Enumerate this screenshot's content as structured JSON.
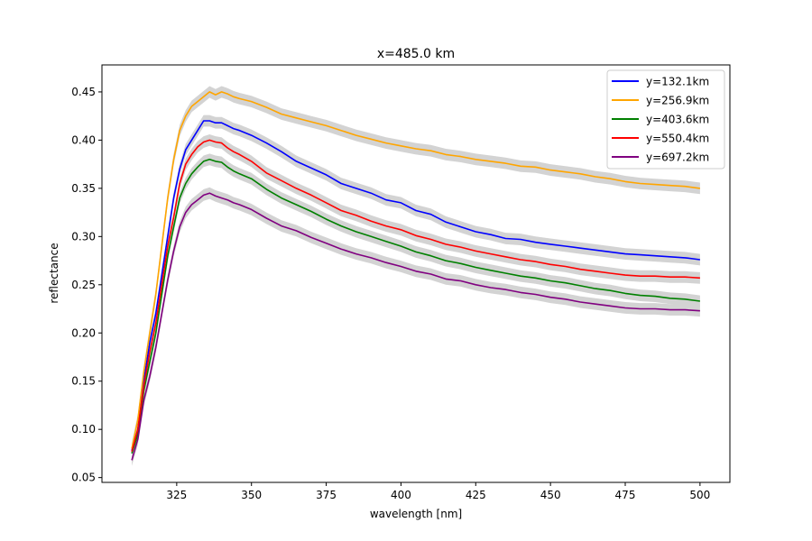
{
  "chart_data": {
    "type": "line",
    "title": "x=485.0 km",
    "xlabel": "wavelength [nm]",
    "ylabel": "reflectance",
    "xlim": [
      300,
      510
    ],
    "ylim": [
      0.045,
      0.478
    ],
    "xticks": [
      325,
      350,
      375,
      400,
      425,
      450,
      475,
      500
    ],
    "yticks": [
      0.05,
      0.1,
      0.15,
      0.2,
      0.25,
      0.3,
      0.35,
      0.4,
      0.45
    ],
    "ytick_labels": [
      "0.05",
      "0.10",
      "0.15",
      "0.20",
      "0.25",
      "0.30",
      "0.35",
      "0.40",
      "0.45"
    ],
    "grid": false,
    "legend_position": "top-right",
    "band_color": "#d3d3d3",
    "series": [
      {
        "name": "y=132.1km",
        "color": "#0000ff",
        "points": [
          [
            310,
            0.078
          ],
          [
            312,
            0.1
          ],
          [
            314,
            0.15
          ],
          [
            316,
            0.19
          ],
          [
            318,
            0.22
          ],
          [
            320,
            0.26
          ],
          [
            322,
            0.3
          ],
          [
            324,
            0.34
          ],
          [
            326,
            0.37
          ],
          [
            328,
            0.39
          ],
          [
            330,
            0.4
          ],
          [
            332,
            0.41
          ],
          [
            334,
            0.42
          ],
          [
            336,
            0.42
          ],
          [
            338,
            0.418
          ],
          [
            340,
            0.418
          ],
          [
            342,
            0.415
          ],
          [
            344,
            0.412
          ],
          [
            346,
            0.41
          ],
          [
            350,
            0.405
          ],
          [
            355,
            0.397
          ],
          [
            360,
            0.388
          ],
          [
            365,
            0.378
          ],
          [
            370,
            0.371
          ],
          [
            375,
            0.364
          ],
          [
            380,
            0.355
          ],
          [
            385,
            0.35
          ],
          [
            390,
            0.345
          ],
          [
            395,
            0.338
          ],
          [
            400,
            0.335
          ],
          [
            405,
            0.327
          ],
          [
            410,
            0.323
          ],
          [
            415,
            0.315
          ],
          [
            420,
            0.31
          ],
          [
            425,
            0.305
          ],
          [
            430,
            0.302
          ],
          [
            435,
            0.298
          ],
          [
            440,
            0.297
          ],
          [
            445,
            0.294
          ],
          [
            450,
            0.292
          ],
          [
            455,
            0.29
          ],
          [
            460,
            0.288
          ],
          [
            465,
            0.286
          ],
          [
            470,
            0.284
          ],
          [
            475,
            0.282
          ],
          [
            480,
            0.281
          ],
          [
            485,
            0.28
          ],
          [
            490,
            0.279
          ],
          [
            495,
            0.278
          ],
          [
            500,
            0.276
          ]
        ]
      },
      {
        "name": "y=256.9km",
        "color": "#ffa500",
        "points": [
          [
            310,
            0.08
          ],
          [
            312,
            0.11
          ],
          [
            314,
            0.16
          ],
          [
            316,
            0.2
          ],
          [
            318,
            0.24
          ],
          [
            320,
            0.29
          ],
          [
            322,
            0.34
          ],
          [
            324,
            0.38
          ],
          [
            326,
            0.41
          ],
          [
            328,
            0.425
          ],
          [
            330,
            0.435
          ],
          [
            332,
            0.44
          ],
          [
            334,
            0.445
          ],
          [
            336,
            0.45
          ],
          [
            338,
            0.447
          ],
          [
            340,
            0.45
          ],
          [
            342,
            0.448
          ],
          [
            344,
            0.445
          ],
          [
            346,
            0.443
          ],
          [
            350,
            0.44
          ],
          [
            355,
            0.434
          ],
          [
            360,
            0.427
          ],
          [
            365,
            0.423
          ],
          [
            370,
            0.419
          ],
          [
            375,
            0.415
          ],
          [
            380,
            0.41
          ],
          [
            385,
            0.405
          ],
          [
            390,
            0.401
          ],
          [
            395,
            0.397
          ],
          [
            400,
            0.394
          ],
          [
            405,
            0.391
          ],
          [
            410,
            0.389
          ],
          [
            415,
            0.385
          ],
          [
            420,
            0.383
          ],
          [
            425,
            0.38
          ],
          [
            430,
            0.378
          ],
          [
            435,
            0.376
          ],
          [
            440,
            0.373
          ],
          [
            445,
            0.372
          ],
          [
            450,
            0.369
          ],
          [
            455,
            0.367
          ],
          [
            460,
            0.365
          ],
          [
            465,
            0.362
          ],
          [
            470,
            0.36
          ],
          [
            475,
            0.357
          ],
          [
            480,
            0.355
          ],
          [
            485,
            0.354
          ],
          [
            490,
            0.353
          ],
          [
            495,
            0.352
          ],
          [
            500,
            0.35
          ]
        ]
      },
      {
        "name": "y=403.6km",
        "color": "#008000",
        "points": [
          [
            310,
            0.075
          ],
          [
            312,
            0.095
          ],
          [
            314,
            0.14
          ],
          [
            316,
            0.17
          ],
          [
            318,
            0.2
          ],
          [
            320,
            0.24
          ],
          [
            322,
            0.28
          ],
          [
            324,
            0.31
          ],
          [
            326,
            0.34
          ],
          [
            328,
            0.355
          ],
          [
            330,
            0.365
          ],
          [
            332,
            0.372
          ],
          [
            334,
            0.378
          ],
          [
            336,
            0.38
          ],
          [
            338,
            0.378
          ],
          [
            340,
            0.377
          ],
          [
            342,
            0.372
          ],
          [
            344,
            0.368
          ],
          [
            346,
            0.365
          ],
          [
            350,
            0.36
          ],
          [
            355,
            0.349
          ],
          [
            360,
            0.34
          ],
          [
            365,
            0.333
          ],
          [
            370,
            0.326
          ],
          [
            375,
            0.318
          ],
          [
            380,
            0.311
          ],
          [
            385,
            0.305
          ],
          [
            390,
            0.3
          ],
          [
            395,
            0.295
          ],
          [
            400,
            0.29
          ],
          [
            405,
            0.284
          ],
          [
            410,
            0.28
          ],
          [
            415,
            0.275
          ],
          [
            420,
            0.272
          ],
          [
            425,
            0.268
          ],
          [
            430,
            0.265
          ],
          [
            435,
            0.262
          ],
          [
            440,
            0.259
          ],
          [
            445,
            0.257
          ],
          [
            450,
            0.254
          ],
          [
            455,
            0.252
          ],
          [
            460,
            0.249
          ],
          [
            465,
            0.246
          ],
          [
            470,
            0.244
          ],
          [
            475,
            0.241
          ],
          [
            480,
            0.239
          ],
          [
            485,
            0.238
          ],
          [
            490,
            0.236
          ],
          [
            495,
            0.235
          ],
          [
            500,
            0.233
          ]
        ]
      },
      {
        "name": "y=550.4km",
        "color": "#ff0000",
        "points": [
          [
            310,
            0.077
          ],
          [
            312,
            0.1
          ],
          [
            314,
            0.145
          ],
          [
            316,
            0.18
          ],
          [
            318,
            0.21
          ],
          [
            320,
            0.25
          ],
          [
            322,
            0.29
          ],
          [
            324,
            0.32
          ],
          [
            326,
            0.355
          ],
          [
            328,
            0.375
          ],
          [
            330,
            0.385
          ],
          [
            332,
            0.393
          ],
          [
            334,
            0.398
          ],
          [
            336,
            0.4
          ],
          [
            338,
            0.398
          ],
          [
            340,
            0.397
          ],
          [
            342,
            0.392
          ],
          [
            344,
            0.388
          ],
          [
            346,
            0.385
          ],
          [
            350,
            0.378
          ],
          [
            355,
            0.366
          ],
          [
            360,
            0.358
          ],
          [
            365,
            0.35
          ],
          [
            370,
            0.343
          ],
          [
            375,
            0.335
          ],
          [
            380,
            0.327
          ],
          [
            385,
            0.322
          ],
          [
            390,
            0.316
          ],
          [
            395,
            0.311
          ],
          [
            400,
            0.307
          ],
          [
            405,
            0.301
          ],
          [
            410,
            0.297
          ],
          [
            415,
            0.292
          ],
          [
            420,
            0.289
          ],
          [
            425,
            0.285
          ],
          [
            430,
            0.282
          ],
          [
            435,
            0.279
          ],
          [
            440,
            0.276
          ],
          [
            445,
            0.274
          ],
          [
            450,
            0.271
          ],
          [
            455,
            0.269
          ],
          [
            460,
            0.266
          ],
          [
            465,
            0.264
          ],
          [
            470,
            0.262
          ],
          [
            475,
            0.26
          ],
          [
            480,
            0.259
          ],
          [
            485,
            0.259
          ],
          [
            490,
            0.258
          ],
          [
            495,
            0.258
          ],
          [
            500,
            0.257
          ]
        ]
      },
      {
        "name": "y=697.2km",
        "color": "#800080",
        "points": [
          [
            310,
            0.068
          ],
          [
            312,
            0.09
          ],
          [
            314,
            0.13
          ],
          [
            316,
            0.155
          ],
          [
            318,
            0.185
          ],
          [
            320,
            0.22
          ],
          [
            322,
            0.255
          ],
          [
            324,
            0.285
          ],
          [
            326,
            0.31
          ],
          [
            328,
            0.325
          ],
          [
            330,
            0.333
          ],
          [
            332,
            0.338
          ],
          [
            334,
            0.343
          ],
          [
            336,
            0.345
          ],
          [
            338,
            0.342
          ],
          [
            340,
            0.34
          ],
          [
            342,
            0.338
          ],
          [
            344,
            0.335
          ],
          [
            346,
            0.333
          ],
          [
            350,
            0.328
          ],
          [
            355,
            0.319
          ],
          [
            360,
            0.311
          ],
          [
            365,
            0.306
          ],
          [
            370,
            0.299
          ],
          [
            375,
            0.293
          ],
          [
            380,
            0.287
          ],
          [
            385,
            0.282
          ],
          [
            390,
            0.278
          ],
          [
            395,
            0.273
          ],
          [
            400,
            0.269
          ],
          [
            405,
            0.264
          ],
          [
            410,
            0.261
          ],
          [
            415,
            0.256
          ],
          [
            420,
            0.254
          ],
          [
            425,
            0.25
          ],
          [
            430,
            0.247
          ],
          [
            435,
            0.245
          ],
          [
            440,
            0.242
          ],
          [
            445,
            0.24
          ],
          [
            450,
            0.237
          ],
          [
            455,
            0.235
          ],
          [
            460,
            0.232
          ],
          [
            465,
            0.23
          ],
          [
            470,
            0.228
          ],
          [
            475,
            0.226
          ],
          [
            480,
            0.225
          ],
          [
            485,
            0.225
          ],
          [
            490,
            0.224
          ],
          [
            495,
            0.224
          ],
          [
            500,
            0.223
          ]
        ]
      }
    ]
  }
}
